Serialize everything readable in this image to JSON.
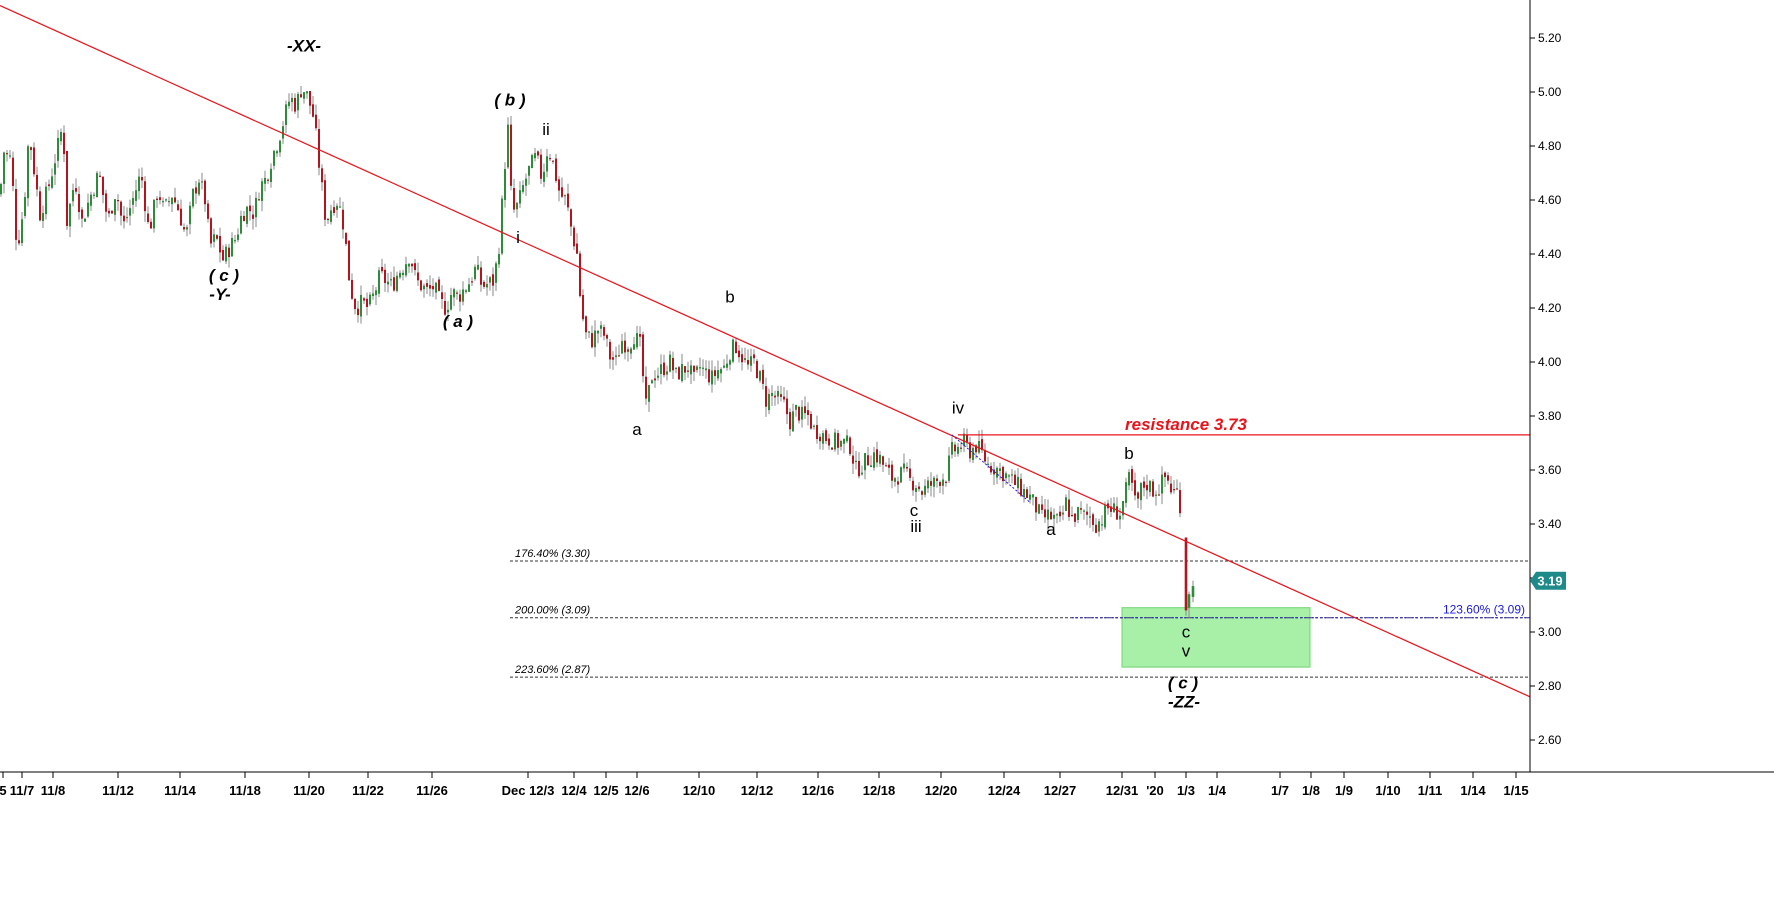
{
  "colors": {
    "up": "#2e8b3a",
    "down": "#b3151f",
    "wick": "#8a8a8a",
    "trendline": "#e8141c",
    "resistance": "#e8141c",
    "fib_line": "#333333",
    "fib_blue": "#1a1adc",
    "target_zone": "#a8f0a8",
    "price_badge": "#1f8a8a"
  },
  "chart_data": {
    "type": "candlestick",
    "ylim": [
      2.5,
      5.3
    ],
    "y_ticks": [
      "2.60",
      "2.80",
      "3.00",
      "3.20",
      "3.40",
      "3.60",
      "3.80",
      "4.00",
      "4.20",
      "4.40",
      "4.60",
      "4.80",
      "5.00",
      "5.20"
    ],
    "x_ticks": [
      "5",
      "11/7",
      "11/8",
      "11/12",
      "11/14",
      "11/18",
      "11/20",
      "11/22",
      "11/26",
      "Dec 12/3",
      "12/4",
      "12/5",
      "12/6",
      "12/10",
      "12/12",
      "12/16",
      "12/18",
      "12/20",
      "12/24",
      "12/27",
      "12/31",
      "'20",
      "1/3",
      "1/4",
      "1/7",
      "1/8",
      "1/9",
      "1/10",
      "1/11",
      "1/14",
      "1/15"
    ],
    "anchors": [
      [
        0,
        4.62
      ],
      [
        4,
        4.78
      ],
      [
        11,
        4.75
      ],
      [
        17,
        4.42
      ],
      [
        24,
        4.58
      ],
      [
        29,
        4.85
      ],
      [
        40,
        4.55
      ],
      [
        48,
        4.64
      ],
      [
        63,
        4.88
      ],
      [
        67,
        4.52
      ],
      [
        75,
        4.68
      ],
      [
        82,
        4.52
      ],
      [
        90,
        4.61
      ],
      [
        99,
        4.7
      ],
      [
        108,
        4.52
      ],
      [
        116,
        4.64
      ],
      [
        123,
        4.5
      ],
      [
        131,
        4.58
      ],
      [
        141,
        4.7
      ],
      [
        149,
        4.48
      ],
      [
        158,
        4.64
      ],
      [
        164,
        4.56
      ],
      [
        172,
        4.62
      ],
      [
        179,
        4.56
      ],
      [
        186,
        4.46
      ],
      [
        193,
        4.62
      ],
      [
        199,
        4.68
      ],
      [
        205,
        4.6
      ],
      [
        210,
        4.43
      ],
      [
        216,
        4.46
      ],
      [
        223,
        4.38
      ],
      [
        229,
        4.42
      ],
      [
        236,
        4.46
      ],
      [
        242,
        4.55
      ],
      [
        248,
        4.57
      ],
      [
        254,
        4.55
      ],
      [
        260,
        4.65
      ],
      [
        266,
        4.68
      ],
      [
        272,
        4.76
      ],
      [
        278,
        4.82
      ],
      [
        284,
        4.9
      ],
      [
        290,
        4.98
      ],
      [
        296,
        4.95
      ],
      [
        302,
        5.02
      ],
      [
        308,
        4.98
      ],
      [
        314,
        4.9
      ],
      [
        320,
        4.7
      ],
      [
        326,
        4.52
      ],
      [
        332,
        4.58
      ],
      [
        338,
        4.6
      ],
      [
        344,
        4.5
      ],
      [
        350,
        4.28
      ],
      [
        356,
        4.2
      ],
      [
        362,
        4.22
      ],
      [
        368,
        4.2
      ],
      [
        374,
        4.25
      ],
      [
        380,
        4.32
      ],
      [
        386,
        4.3
      ],
      [
        392,
        4.28
      ],
      [
        398,
        4.33
      ],
      [
        404,
        4.36
      ],
      [
        410,
        4.4
      ],
      [
        416,
        4.3
      ],
      [
        422,
        4.28
      ],
      [
        428,
        4.26
      ],
      [
        434,
        4.28
      ],
      [
        440,
        4.22
      ],
      [
        446,
        4.2
      ],
      [
        452,
        4.26
      ],
      [
        458,
        4.24
      ],
      [
        464,
        4.27
      ],
      [
        470,
        4.3
      ],
      [
        476,
        4.35
      ],
      [
        482,
        4.28
      ],
      [
        488,
        4.29
      ],
      [
        494,
        4.3
      ],
      [
        500,
        4.46
      ],
      [
        504,
        4.7
      ],
      [
        508,
        4.86
      ],
      [
        512,
        4.55
      ],
      [
        518,
        4.58
      ],
      [
        524,
        4.66
      ],
      [
        530,
        4.72
      ],
      [
        536,
        4.76
      ],
      [
        542,
        4.68
      ],
      [
        548,
        4.8
      ],
      [
        554,
        4.72
      ],
      [
        560,
        4.62
      ],
      [
        566,
        4.6
      ],
      [
        572,
        4.48
      ],
      [
        577,
        4.4
      ],
      [
        581,
        4.2
      ],
      [
        586,
        4.1
      ],
      [
        592,
        4.08
      ],
      [
        598,
        4.12
      ],
      [
        604,
        4.1
      ],
      [
        610,
        4.02
      ],
      [
        616,
        4.0
      ],
      [
        622,
        4.08
      ],
      [
        628,
        4.06
      ],
      [
        634,
        4.1
      ],
      [
        640,
        4.06
      ],
      [
        646,
        3.83
      ],
      [
        652,
        3.95
      ],
      [
        658,
        3.96
      ],
      [
        664,
        3.98
      ],
      [
        670,
        4.0
      ],
      [
        676,
        3.95
      ],
      [
        682,
        3.97
      ],
      [
        688,
        3.98
      ],
      [
        694,
        3.93
      ],
      [
        700,
        3.98
      ],
      [
        706,
        3.96
      ],
      [
        712,
        3.94
      ],
      [
        718,
        3.97
      ],
      [
        724,
        3.98
      ],
      [
        730,
        4.04
      ],
      [
        736,
        4.06
      ],
      [
        742,
        4.02
      ],
      [
        748,
        3.98
      ],
      [
        754,
        4.0
      ],
      [
        760,
        3.94
      ],
      [
        766,
        3.86
      ],
      [
        772,
        3.88
      ],
      [
        778,
        3.86
      ],
      [
        784,
        3.84
      ],
      [
        790,
        3.78
      ],
      [
        796,
        3.82
      ],
      [
        802,
        3.8
      ],
      [
        808,
        3.8
      ],
      [
        814,
        3.75
      ],
      [
        820,
        3.74
      ],
      [
        826,
        3.72
      ],
      [
        832,
        3.71
      ],
      [
        838,
        3.7
      ],
      [
        844,
        3.7
      ],
      [
        850,
        3.69
      ],
      [
        856,
        3.6
      ],
      [
        862,
        3.62
      ],
      [
        868,
        3.64
      ],
      [
        874,
        3.66
      ],
      [
        880,
        3.64
      ],
      [
        886,
        3.6
      ],
      [
        892,
        3.57
      ],
      [
        898,
        3.58
      ],
      [
        904,
        3.59
      ],
      [
        910,
        3.56
      ],
      [
        916,
        3.55
      ],
      [
        922,
        3.52
      ],
      [
        928,
        3.54
      ],
      [
        934,
        3.55
      ],
      [
        940,
        3.57
      ],
      [
        946,
        3.58
      ],
      [
        952,
        3.67
      ],
      [
        958,
        3.68
      ],
      [
        964,
        3.7
      ],
      [
        970,
        3.67
      ],
      [
        976,
        3.69
      ],
      [
        982,
        3.66
      ],
      [
        988,
        3.62
      ],
      [
        994,
        3.61
      ],
      [
        1000,
        3.6
      ],
      [
        1006,
        3.58
      ],
      [
        1012,
        3.56
      ],
      [
        1018,
        3.54
      ],
      [
        1024,
        3.52
      ],
      [
        1030,
        3.5
      ],
      [
        1036,
        3.46
      ],
      [
        1042,
        3.42
      ],
      [
        1048,
        3.43
      ],
      [
        1054,
        3.42
      ],
      [
        1060,
        3.4
      ],
      [
        1066,
        3.48
      ],
      [
        1072,
        3.42
      ],
      [
        1078,
        3.44
      ],
      [
        1084,
        3.43
      ],
      [
        1090,
        3.43
      ],
      [
        1096,
        3.4
      ],
      [
        1102,
        3.42
      ],
      [
        1108,
        3.46
      ],
      [
        1114,
        3.45
      ],
      [
        1120,
        3.44
      ],
      [
        1126,
        3.52
      ],
      [
        1130,
        3.58
      ],
      [
        1136,
        3.46
      ],
      [
        1142,
        3.54
      ],
      [
        1148,
        3.55
      ],
      [
        1154,
        3.52
      ],
      [
        1160,
        3.54
      ],
      [
        1166,
        3.58
      ],
      [
        1172,
        3.52
      ],
      [
        1178,
        3.52
      ],
      [
        1186,
        3.34
      ],
      [
        1189,
        3.08
      ],
      [
        1193,
        3.16
      ]
    ],
    "events": [
      [
        1186,
        3.35,
        3.35,
        3.06,
        3.08
      ],
      [
        1189,
        3.09,
        3.15,
        3.05,
        3.14
      ],
      [
        1193,
        3.13,
        3.19,
        3.11,
        3.17
      ]
    ],
    "lines": {
      "trendline": {
        "from": [
          0,
          5.32
        ],
        "to": [
          1530,
          2.76
        ]
      },
      "resistance": {
        "value": 3.73,
        "from_x": 958,
        "label": "resistance 3.73"
      }
    },
    "fibonacci": [
      {
        "label": "176.40% (3.30)",
        "value": 3.3
      },
      {
        "label": "200.00% (3.09)",
        "value": 3.09
      },
      {
        "label": "223.60% (2.87)",
        "value": 2.87
      }
    ],
    "fib_blue": {
      "label": "123.60% (3.09)",
      "value": 3.09
    },
    "target_zone": {
      "y_low": 2.87,
      "y_high": 3.09
    },
    "current_price": "3.19"
  },
  "wave_labels": [
    {
      "text": "-XX-",
      "x": 304,
      "y": 5.15,
      "style": "italic"
    },
    {
      "text": "( c )",
      "x": 224,
      "y": 4.3,
      "style": "italic"
    },
    {
      "text": "-Y-",
      "x": 220,
      "y": 4.23,
      "style": "italic"
    },
    {
      "text": "( a )",
      "x": 458,
      "y": 4.13,
      "style": "italic"
    },
    {
      "text": "( b )",
      "x": 510,
      "y": 4.95,
      "style": "italic"
    },
    {
      "text": "ii",
      "x": 546,
      "y": 4.84,
      "style": "plain"
    },
    {
      "text": "i",
      "x": 518,
      "y": 4.44,
      "style": "plain"
    },
    {
      "text": "a",
      "x": 637,
      "y": 3.73,
      "style": "plain"
    },
    {
      "text": "b",
      "x": 730,
      "y": 4.22,
      "style": "plain"
    },
    {
      "text": "iv",
      "x": 958,
      "y": 3.81,
      "style": "plain"
    },
    {
      "text": "c",
      "x": 914,
      "y": 3.43,
      "style": "plain"
    },
    {
      "text": "iii",
      "x": 916,
      "y": 3.37,
      "style": "plain"
    },
    {
      "text": "a",
      "x": 1051,
      "y": 3.36,
      "style": "plain"
    },
    {
      "text": "b",
      "x": 1129,
      "y": 3.64,
      "style": "plain"
    },
    {
      "text": "c",
      "x": 1186,
      "y": 2.98,
      "style": "plain"
    },
    {
      "text": "v",
      "x": 1186,
      "y": 2.91,
      "style": "plain"
    },
    {
      "text": "( c )",
      "x": 1183,
      "y": 2.79,
      "style": "italic"
    },
    {
      "text": "-ZZ-",
      "x": 1184,
      "y": 2.72,
      "style": "italic"
    }
  ]
}
